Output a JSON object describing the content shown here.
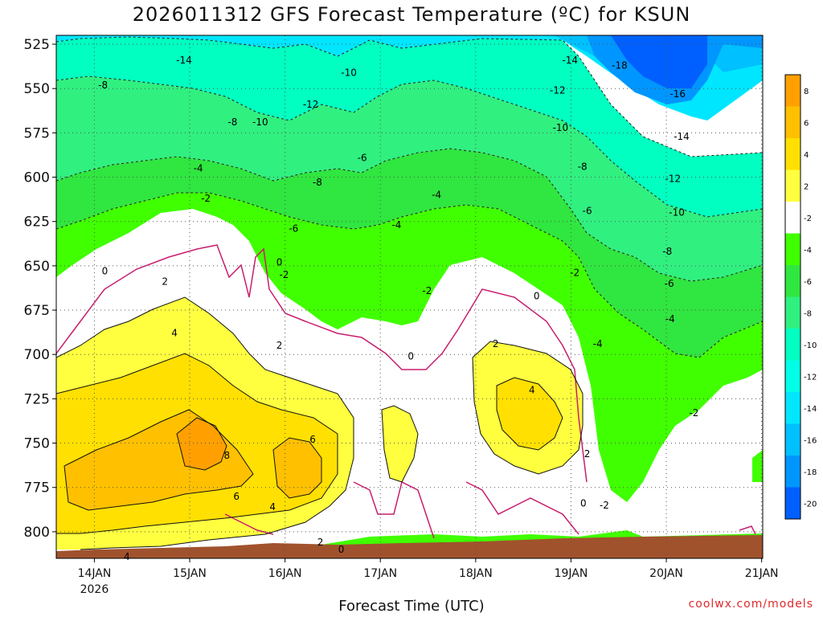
{
  "chart_data": {
    "type": "heatmap",
    "title": "2026011312 GFS Forecast Temperature (ºC) for KSUN",
    "xlabel": "Forecast Time (UTC)",
    "ylabel": "",
    "y_levels": [
      525,
      550,
      575,
      600,
      625,
      650,
      675,
      700,
      725,
      750,
      775,
      800
    ],
    "ylim": [
      520,
      815
    ],
    "x_ticks": [
      {
        "label": "14JAN",
        "sub": "2026"
      },
      {
        "label": "15JAN",
        "sub": ""
      },
      {
        "label": "16JAN",
        "sub": ""
      },
      {
        "label": "17JAN",
        "sub": ""
      },
      {
        "label": "18JAN",
        "sub": ""
      },
      {
        "label": "19JAN",
        "sub": ""
      },
      {
        "label": "20JAN",
        "sub": ""
      },
      {
        "label": "21JAN",
        "sub": ""
      }
    ],
    "colorbar": {
      "levels": [
        8,
        6,
        4,
        2,
        -2,
        -4,
        -6,
        -8,
        -10,
        -12,
        -14,
        -16,
        -18,
        -20
      ],
      "colors": [
        "#ffa000",
        "#ffc000",
        "#ffe000",
        "#ffff40",
        "#ffffff",
        "#40ff00",
        "#30e640",
        "#30f080",
        "#00ffc0",
        "#00ffe6",
        "#00e6ff",
        "#00c0ff",
        "#0096ff",
        "#0060ff"
      ]
    },
    "contour_labels": [
      {
        "text": "-14",
        "day": 14.94,
        "p": 534
      },
      {
        "text": "-8",
        "day": 14.09,
        "p": 548
      },
      {
        "text": "-10",
        "day": 16.67,
        "p": 541
      },
      {
        "text": "-12",
        "day": 16.27,
        "p": 559
      },
      {
        "text": "-14",
        "day": 18.99,
        "p": 534
      },
      {
        "text": "-18",
        "day": 19.51,
        "p": 537
      },
      {
        "text": "-12",
        "day": 18.86,
        "p": 551
      },
      {
        "text": "-16",
        "day": 20.12,
        "p": 553
      },
      {
        "text": "-8",
        "day": 15.45,
        "p": 569
      },
      {
        "text": "-10",
        "day": 15.74,
        "p": 569
      },
      {
        "text": "-10",
        "day": 18.89,
        "p": 572
      },
      {
        "text": "-14",
        "day": 20.16,
        "p": 577
      },
      {
        "text": "-6",
        "day": 16.81,
        "p": 589
      },
      {
        "text": "-4",
        "day": 15.09,
        "p": 595
      },
      {
        "text": "-8",
        "day": 16.34,
        "p": 603
      },
      {
        "text": "-8",
        "day": 19.12,
        "p": 594
      },
      {
        "text": "-12",
        "day": 20.07,
        "p": 601
      },
      {
        "text": "-4",
        "day": 17.59,
        "p": 610
      },
      {
        "text": "-2",
        "day": 15.17,
        "p": 612
      },
      {
        "text": "-6",
        "day": 19.17,
        "p": 619
      },
      {
        "text": "-10",
        "day": 20.11,
        "p": 620
      },
      {
        "text": "-6",
        "day": 16.09,
        "p": 629
      },
      {
        "text": "-4",
        "day": 17.17,
        "p": 627
      },
      {
        "text": "0",
        "day": 14.11,
        "p": 653
      },
      {
        "text": "0",
        "day": 15.94,
        "p": 648
      },
      {
        "text": "-2",
        "day": 15.99,
        "p": 655
      },
      {
        "text": "-2",
        "day": 19.04,
        "p": 654
      },
      {
        "text": "-8",
        "day": 20.01,
        "p": 642
      },
      {
        "text": "-6",
        "day": 20.03,
        "p": 660
      },
      {
        "text": "2",
        "day": 14.74,
        "p": 659
      },
      {
        "text": "-2",
        "day": 17.49,
        "p": 664
      },
      {
        "text": "0",
        "day": 18.64,
        "p": 667
      },
      {
        "text": "-4",
        "day": 19.28,
        "p": 694
      },
      {
        "text": "-4",
        "day": 20.04,
        "p": 680
      },
      {
        "text": "4",
        "day": 14.84,
        "p": 688
      },
      {
        "text": "2",
        "day": 15.94,
        "p": 695
      },
      {
        "text": "0",
        "day": 17.32,
        "p": 701
      },
      {
        "text": "2",
        "day": 18.21,
        "p": 694
      },
      {
        "text": "4",
        "day": 18.59,
        "p": 720
      },
      {
        "text": "-2",
        "day": 20.29,
        "p": 733
      },
      {
        "text": "8",
        "day": 15.39,
        "p": 757
      },
      {
        "text": "6",
        "day": 16.29,
        "p": 748
      },
      {
        "text": "2",
        "day": 19.17,
        "p": 756
      },
      {
        "text": "6",
        "day": 15.49,
        "p": 780
      },
      {
        "text": "4",
        "day": 15.87,
        "p": 786
      },
      {
        "text": "0",
        "day": 19.13,
        "p": 784
      },
      {
        "text": "-2",
        "day": 19.35,
        "p": 785
      },
      {
        "text": "2",
        "day": 16.37,
        "p": 806
      },
      {
        "text": "0",
        "day": 16.59,
        "p": 810
      },
      {
        "text": "4",
        "day": 14.34,
        "p": 814
      }
    ]
  },
  "credit": "coolwx.com/models"
}
